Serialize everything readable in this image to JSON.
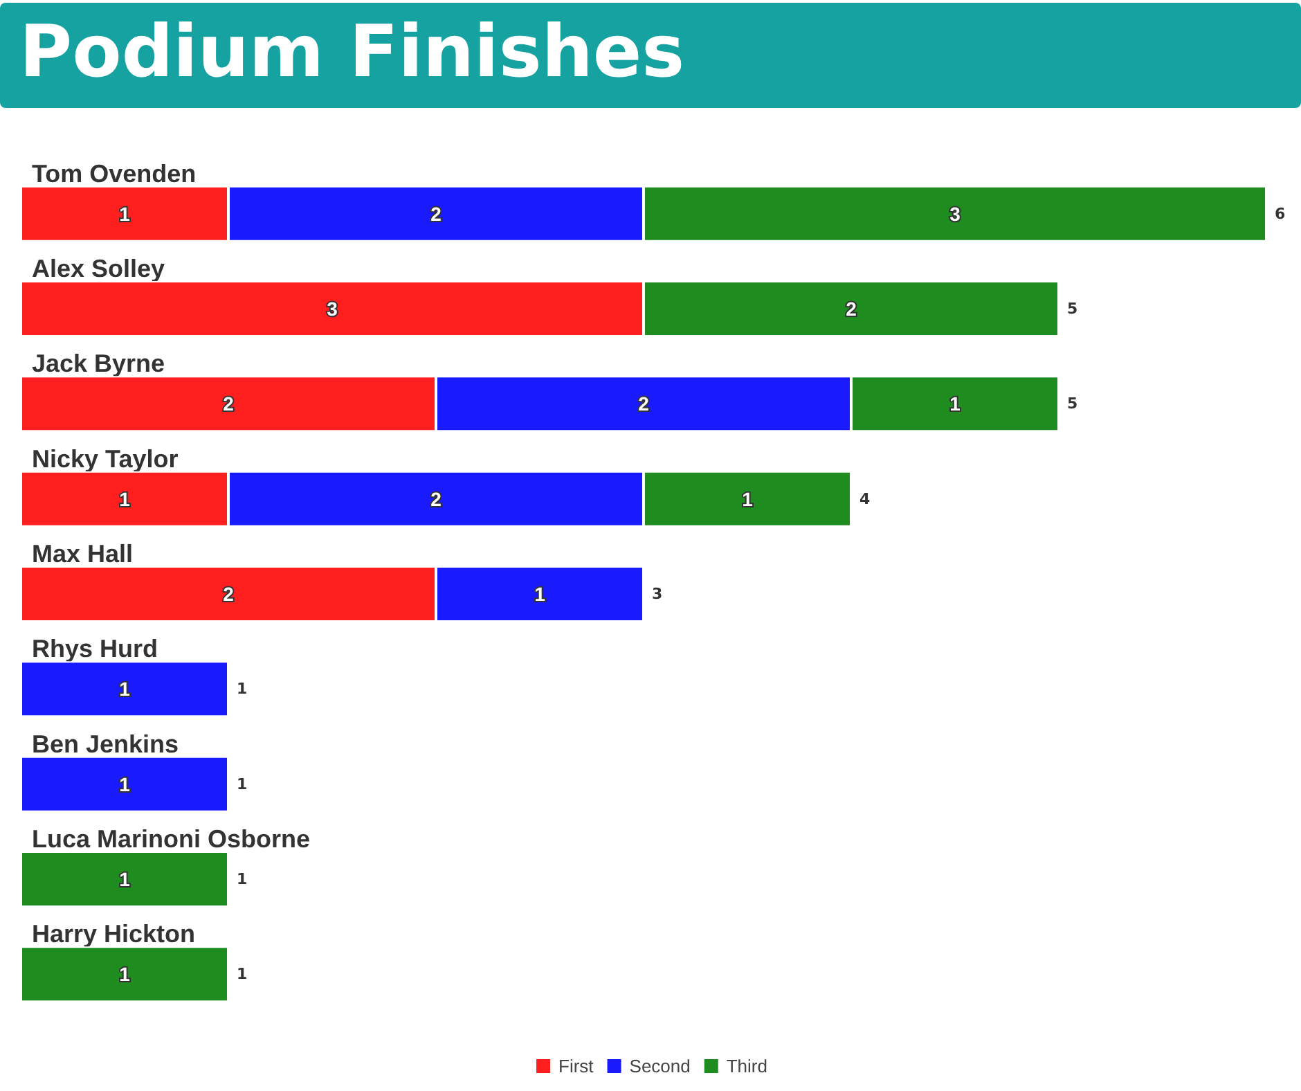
{
  "chart_data": {
    "type": "bar",
    "orientation": "horizontal",
    "stacked": true,
    "title": "Podium Finishes",
    "categories": [
      "Tom Ovenden",
      "Alex Solley",
      "Jack Byrne",
      "Nicky Taylor",
      "Max Hall",
      "Rhys Hurd",
      "Ben Jenkins",
      "Luca Marinoni Osborne",
      "Harry Hickton"
    ],
    "series": [
      {
        "name": "First",
        "color": "#ff1f1f",
        "values": [
          1,
          3,
          2,
          1,
          2,
          null,
          null,
          null,
          null
        ]
      },
      {
        "name": "Second",
        "color": "#1a1aff",
        "values": [
          2,
          null,
          2,
          2,
          1,
          1,
          1,
          null,
          null
        ]
      },
      {
        "name": "Third",
        "color": "#1e8c1e",
        "values": [
          3,
          2,
          1,
          1,
          null,
          null,
          null,
          1,
          1
        ]
      }
    ],
    "totals": [
      "6",
      "5",
      "5",
      "4",
      "3",
      "1",
      "1",
      "1",
      "1"
    ],
    "xlim": [
      0,
      6
    ],
    "tick_labels": "y",
    "data_labels": true,
    "legend": "bottom"
  }
}
